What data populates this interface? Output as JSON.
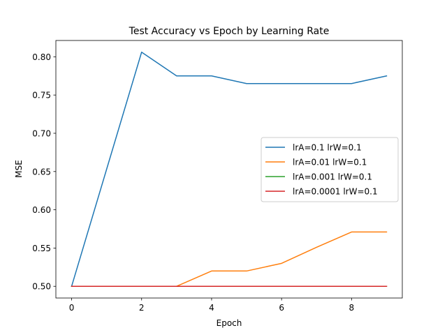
{
  "chart_data": {
    "type": "line",
    "title": "Test Accuracy vs Epoch by Learning Rate",
    "xlabel": "Epoch",
    "ylabel": "MSE",
    "xlim": [
      -0.45,
      9.45
    ],
    "ylim": [
      0.4847,
      0.8213
    ],
    "xticks": [
      0,
      2,
      4,
      6,
      8
    ],
    "yticks": [
      0.5,
      0.55,
      0.6,
      0.65,
      0.7,
      0.75,
      0.8
    ],
    "x": [
      0,
      1,
      2,
      3,
      4,
      5,
      6,
      7,
      8,
      9
    ],
    "grid": false,
    "legend_position": "center-right",
    "series": [
      {
        "name": "lrA=0.1 lrW=0.1",
        "color": "#1f77b4",
        "values": [
          0.5,
          0.653,
          0.806,
          0.775,
          0.775,
          0.765,
          0.765,
          0.765,
          0.765,
          0.775
        ]
      },
      {
        "name": "lrA=0.01 lrW=0.1",
        "color": "#ff7f0e",
        "values": [
          0.5,
          0.5,
          0.5,
          0.5,
          0.52,
          0.52,
          0.53,
          0.551,
          0.571,
          0.571
        ]
      },
      {
        "name": "lrA=0.001 lrW=0.1",
        "color": "#2ca02c",
        "values": [
          0.5,
          0.5,
          0.5,
          0.5,
          0.5,
          0.5,
          0.5,
          0.5,
          0.5,
          0.5
        ]
      },
      {
        "name": "lrA=0.0001 lrW=0.1",
        "color": "#d62728",
        "values": [
          0.5,
          0.5,
          0.5,
          0.5,
          0.5,
          0.5,
          0.5,
          0.5,
          0.5,
          0.5
        ]
      }
    ]
  }
}
